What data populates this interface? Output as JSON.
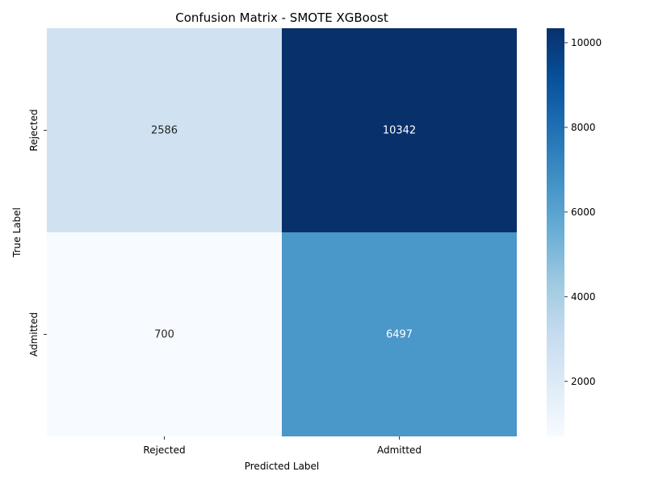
{
  "chart_data": {
    "type": "heatmap",
    "title": "Confusion Matrix - SMOTE XGBoost",
    "xlabel": "Predicted Label",
    "ylabel": "True Label",
    "x_categories": [
      "Rejected",
      "Admitted"
    ],
    "y_categories": [
      "Rejected",
      "Admitted"
    ],
    "values": [
      [
        2586,
        10342
      ],
      [
        700,
        6497
      ]
    ],
    "colormap": "Blues",
    "color_range": [
      700,
      10342
    ],
    "colorbar_ticks": [
      2000,
      4000,
      6000,
      8000,
      10000
    ],
    "colorbar_tick_labels": [
      "2000",
      "4000",
      "6000",
      "8000",
      "10000"
    ],
    "annotation_text": [
      [
        "2586",
        "10342"
      ],
      [
        "700",
        "6497"
      ]
    ]
  }
}
